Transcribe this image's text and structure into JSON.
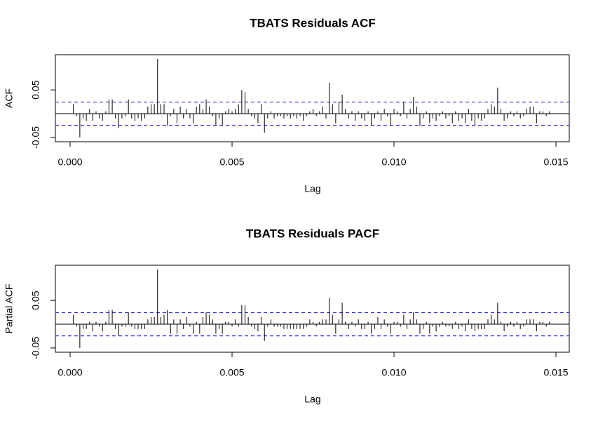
{
  "chart_data": [
    {
      "type": "acf",
      "title": "TBATS Residuals ACF",
      "x_label": "Lag",
      "y_label": "ACF",
      "xlim": [
        -0.000455,
        0.015411
      ],
      "ylim": [
        -0.059,
        0.124
      ],
      "xticks": [
        {
          "value": 0,
          "label": "0.000"
        },
        0.005,
        {
          "value": 0.01,
          "label": "0.010"
        },
        0.015
      ],
      "yticks": [
        -0.05,
        0.05
      ],
      "ci": [
        -0.0245,
        0.0245
      ],
      "color": "#000000",
      "ci_color": "#3333ee",
      "x": [
        0.0001,
        0.0002,
        0.0003,
        0.0004,
        0.0005,
        0.0006,
        0.0007,
        0.0008,
        0.0009,
        0.001,
        0.0011,
        0.0012,
        0.0013,
        0.0014,
        0.0015,
        0.0016,
        0.0017,
        0.0018,
        0.0019,
        0.002,
        0.0021,
        0.0022,
        0.0023,
        0.0024,
        0.0025,
        0.0026,
        0.0027,
        0.0028,
        0.0029,
        0.003,
        0.0031,
        0.0032,
        0.0033,
        0.0034,
        0.0035,
        0.0036,
        0.0037,
        0.0038,
        0.0039,
        0.004,
        0.0041,
        0.0042,
        0.0043,
        0.0044,
        0.0045,
        0.0046,
        0.0047,
        0.0048,
        0.0049,
        0.005,
        0.0051,
        0.0052,
        0.0053,
        0.0054,
        0.0055,
        0.0056,
        0.0057,
        0.0058,
        0.0059,
        0.006,
        0.0061,
        0.0062,
        0.0063,
        0.0064,
        0.0065,
        0.0066,
        0.0067,
        0.0068,
        0.0069,
        0.007,
        0.0071,
        0.0072,
        0.0073,
        0.0074,
        0.0075,
        0.0076,
        0.0077,
        0.0078,
        0.0079,
        0.008,
        0.0081,
        0.0082,
        0.0083,
        0.0084,
        0.0085,
        0.0086,
        0.0087,
        0.0088,
        0.0089,
        0.009,
        0.0091,
        0.0092,
        0.0093,
        0.0094,
        0.0095,
        0.0096,
        0.0097,
        0.0098,
        0.0099,
        0.01,
        0.0101,
        0.0102,
        0.0103,
        0.0104,
        0.0105,
        0.0106,
        0.0107,
        0.0108,
        0.0109,
        0.011,
        0.0111,
        0.0112,
        0.0113,
        0.0114,
        0.0115,
        0.0116,
        0.0117,
        0.0118,
        0.0119,
        0.012,
        0.0121,
        0.0122,
        0.0123,
        0.0124,
        0.0125,
        0.0126,
        0.0127,
        0.0128,
        0.0129,
        0.013,
        0.0131,
        0.0132,
        0.0133,
        0.0134,
        0.0135,
        0.0136,
        0.0137,
        0.0138,
        0.0139,
        0.014,
        0.0141,
        0.0142,
        0.0143,
        0.0144,
        0.0145,
        0.0146,
        0.0147,
        0.0148
      ],
      "values": [
        0.02,
        -0.005,
        -0.05,
        -0.01,
        -0.015,
        0.01,
        -0.015,
        0.005,
        -0.01,
        -0.015,
        0.005,
        0.03,
        0.03,
        -0.01,
        -0.03,
        -0.01,
        -0.005,
        0.03,
        -0.01,
        -0.015,
        -0.01,
        -0.015,
        -0.01,
        0.015,
        0.02,
        0.02,
        0.115,
        0.02,
        0.02,
        -0.025,
        -0.005,
        0.01,
        -0.02,
        0.015,
        -0.01,
        0.01,
        -0.01,
        -0.02,
        0.015,
        0.02,
        0.01,
        0.03,
        0.015,
        -0.005,
        -0.025,
        -0.01,
        -0.025,
        0.005,
        0.01,
        0.005,
        0.01,
        0.02,
        0.05,
        0.045,
        0.01,
        -0.005,
        -0.01,
        -0.02,
        0.02,
        -0.04,
        -0.01,
        0.005,
        -0.01,
        -0.005,
        -0.005,
        -0.01,
        -0.005,
        -0.01,
        -0.005,
        -0.01,
        -0.005,
        -0.015,
        -0.005,
        0.005,
        0.01,
        -0.005,
        0.005,
        0.015,
        -0.01,
        0.065,
        0.02,
        -0.02,
        0.025,
        0.04,
        0.01,
        -0.01,
        0.005,
        -0.015,
        0.005,
        -0.01,
        -0.015,
        0.005,
        -0.025,
        -0.01,
        0.005,
        -0.015,
        0.01,
        -0.005,
        -0.025,
        0.01,
        0.005,
        -0.005,
        0.025,
        -0.01,
        0.01,
        0.035,
        0.015,
        -0.025,
        -0.01,
        0.005,
        -0.02,
        -0.01,
        -0.015,
        -0.005,
        0.005,
        -0.01,
        -0.005,
        -0.02,
        0.005,
        -0.015,
        -0.01,
        -0.02,
        0.01,
        -0.015,
        -0.025,
        -0.01,
        -0.015,
        -0.01,
        0.01,
        0.02,
        0.015,
        0.055,
        0.01,
        -0.015,
        -0.01,
        0.005,
        -0.005,
        0.005,
        -0.01,
        -0.005,
        0.01,
        0.015,
        0.015,
        -0.02,
        0.005,
        0.005,
        -0.005,
        0.005
      ]
    },
    {
      "type": "acf",
      "title": "TBATS Residuals PACF",
      "x_label": "Lag",
      "y_label": "Partial ACF",
      "xlim": [
        -0.000455,
        0.015411
      ],
      "ylim": [
        -0.059,
        0.124
      ],
      "xticks": [
        {
          "value": 0,
          "label": "0.000"
        },
        0.005,
        {
          "value": 0.01,
          "label": "0.010"
        },
        0.015
      ],
      "yticks": [
        -0.05,
        0.05
      ],
      "ci": [
        -0.0245,
        0.0245
      ],
      "color": "#000000",
      "ci_color": "#3333ee",
      "x": [
        0.0001,
        0.0002,
        0.0003,
        0.0004,
        0.0005,
        0.0006,
        0.0007,
        0.0008,
        0.0009,
        0.001,
        0.0011,
        0.0012,
        0.0013,
        0.0014,
        0.0015,
        0.0016,
        0.0017,
        0.0018,
        0.0019,
        0.002,
        0.0021,
        0.0022,
        0.0023,
        0.0024,
        0.0025,
        0.0026,
        0.0027,
        0.0028,
        0.0029,
        0.003,
        0.0031,
        0.0032,
        0.0033,
        0.0034,
        0.0035,
        0.0036,
        0.0037,
        0.0038,
        0.0039,
        0.004,
        0.0041,
        0.0042,
        0.0043,
        0.0044,
        0.0045,
        0.0046,
        0.0047,
        0.0048,
        0.0049,
        0.005,
        0.0051,
        0.0052,
        0.0053,
        0.0054,
        0.0055,
        0.0056,
        0.0057,
        0.0058,
        0.0059,
        0.006,
        0.0061,
        0.0062,
        0.0063,
        0.0064,
        0.0065,
        0.0066,
        0.0067,
        0.0068,
        0.0069,
        0.007,
        0.0071,
        0.0072,
        0.0073,
        0.0074,
        0.0075,
        0.0076,
        0.0077,
        0.0078,
        0.0079,
        0.008,
        0.0081,
        0.0082,
        0.0083,
        0.0084,
        0.0085,
        0.0086,
        0.0087,
        0.0088,
        0.0089,
        0.009,
        0.0091,
        0.0092,
        0.0093,
        0.0094,
        0.0095,
        0.0096,
        0.0097,
        0.0098,
        0.0099,
        0.01,
        0.0101,
        0.0102,
        0.0103,
        0.0104,
        0.0105,
        0.0106,
        0.0107,
        0.0108,
        0.0109,
        0.011,
        0.0111,
        0.0112,
        0.0113,
        0.0114,
        0.0115,
        0.0116,
        0.0117,
        0.0118,
        0.0119,
        0.012,
        0.0121,
        0.0122,
        0.0123,
        0.0124,
        0.0125,
        0.0126,
        0.0127,
        0.0128,
        0.0129,
        0.013,
        0.0131,
        0.0132,
        0.0133,
        0.0134,
        0.0135,
        0.0136,
        0.0137,
        0.0138,
        0.0139,
        0.014,
        0.0141,
        0.0142,
        0.0143,
        0.0144,
        0.0145,
        0.0146,
        0.0147,
        0.0148
      ],
      "values": [
        0.02,
        -0.005,
        -0.05,
        -0.01,
        -0.01,
        0.005,
        -0.015,
        0.005,
        -0.005,
        -0.015,
        0.005,
        0.03,
        0.03,
        -0.01,
        -0.025,
        -0.005,
        -0.005,
        0.025,
        -0.005,
        -0.01,
        -0.01,
        -0.01,
        -0.01,
        0.01,
        0.015,
        0.015,
        0.115,
        0.015,
        0.02,
        0.03,
        -0.02,
        0.01,
        -0.02,
        0.01,
        -0.01,
        0.015,
        -0.005,
        -0.02,
        0.005,
        -0.02,
        0.015,
        0.025,
        0.02,
        0.01,
        -0.02,
        -0.01,
        -0.02,
        0.005,
        0.005,
        -0.005,
        0.01,
        -0.005,
        0.04,
        0.04,
        0.015,
        -0.005,
        -0.01,
        -0.015,
        0.015,
        -0.035,
        -0.005,
        0.01,
        -0.005,
        -0.005,
        -0.005,
        -0.01,
        -0.01,
        -0.01,
        -0.01,
        -0.01,
        -0.01,
        -0.01,
        -0.005,
        0.01,
        0.005,
        -0.005,
        0.005,
        0.01,
        0.01,
        0.055,
        0.02,
        -0.02,
        0.01,
        0.045,
        0.005,
        -0.01,
        0.005,
        -0.005,
        0.01,
        -0.01,
        -0.01,
        0.005,
        -0.02,
        -0.01,
        0.015,
        -0.01,
        0.01,
        -0.005,
        -0.02,
        0.005,
        0.005,
        -0.005,
        0.02,
        -0.01,
        0.01,
        0.025,
        0.01,
        -0.02,
        -0.01,
        0.005,
        -0.02,
        -0.005,
        -0.015,
        -0.005,
        0.005,
        -0.005,
        -0.005,
        -0.01,
        0.005,
        -0.01,
        -0.005,
        -0.015,
        0.01,
        -0.01,
        -0.015,
        -0.01,
        -0.01,
        -0.01,
        0.01,
        0.02,
        0.01,
        0.045,
        0.005,
        -0.015,
        -0.005,
        0.005,
        -0.005,
        0.005,
        -0.01,
        -0.005,
        0.01,
        0.01,
        0.01,
        -0.015,
        0.005,
        0.005,
        -0.005,
        0.005
      ]
    }
  ]
}
